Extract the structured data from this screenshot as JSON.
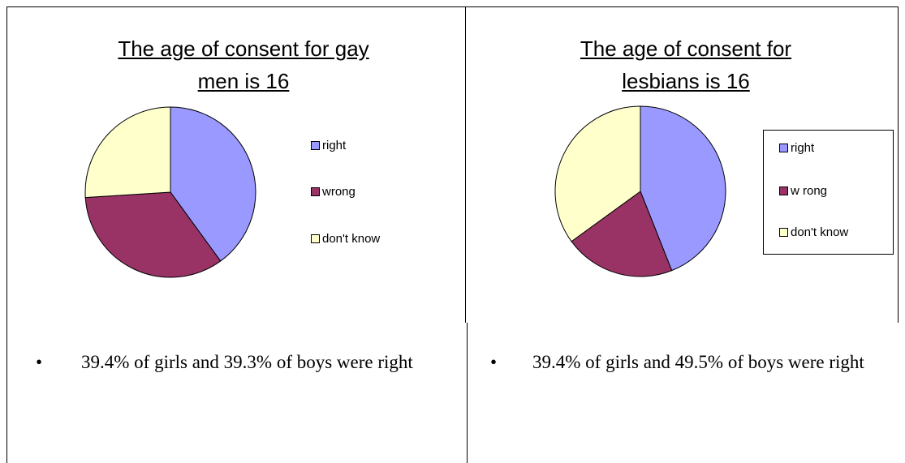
{
  "chart_data": [
    {
      "type": "pie",
      "title": "The age of consent for gay men is 16",
      "categories": [
        "right",
        "wrong",
        "don't know"
      ],
      "values": [
        40,
        34,
        26
      ],
      "colors": [
        "#9999ff",
        "#993366",
        "#ffffcc"
      ],
      "legend_frame": false
    },
    {
      "type": "pie",
      "title": "The age of consent for lesbians is 16",
      "categories": [
        "right",
        "w rong",
        "don't know"
      ],
      "values": [
        44,
        21,
        35
      ],
      "colors": [
        "#9999ff",
        "#993366",
        "#ffffcc"
      ],
      "legend_frame": true
    }
  ],
  "notes": [
    "39.4% of girls and 39.3% of boys were right",
    "39.4% of girls and 49.5% of boys were right"
  ]
}
